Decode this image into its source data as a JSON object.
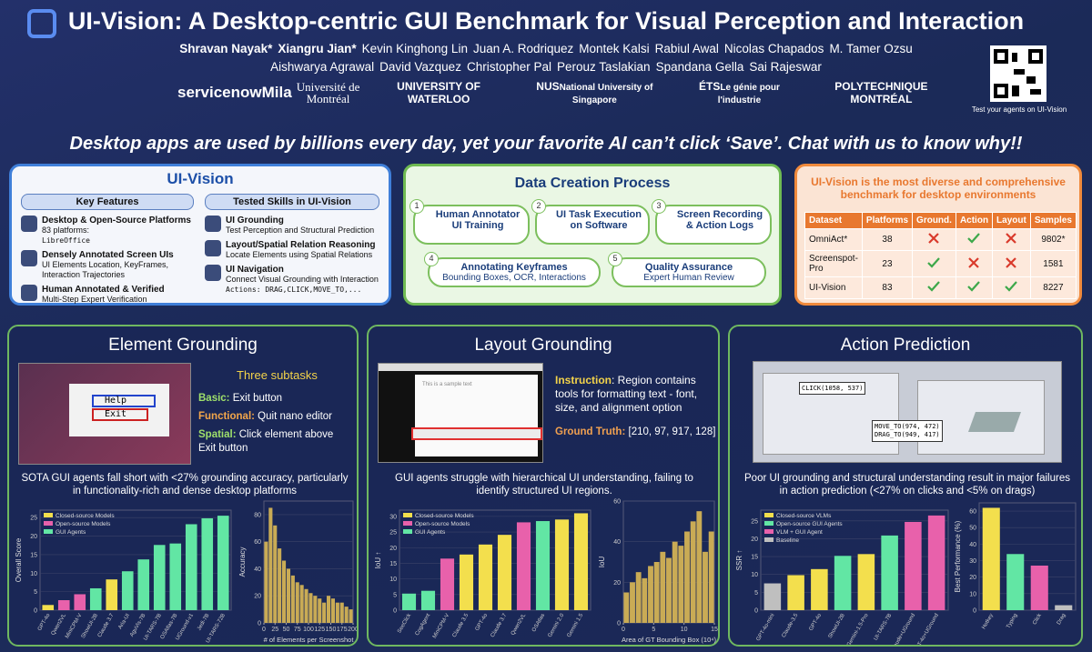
{
  "header": {
    "title": "UI-Vision: A Desktop-centric GUI Benchmark for Visual Perception and Interaction",
    "authors": [
      "Shravan Nayak*",
      "Xiangru Jian*",
      "Kevin Kinghong Lin",
      "Juan A. Rodriquez",
      "Montek Kalsi",
      "Rabiul Awal",
      "Nicolas Chapados",
      "M. Tamer Ozsu",
      "Aishwarya Agrawal",
      "David Vazquez",
      "Christopher Pal",
      "Perouz Taslakian",
      "Spandana Gella",
      "Sai Rajeswar"
    ],
    "logos": [
      "servicenow",
      "Mila",
      "Université de Montréal",
      "UNIVERSITY OF WATERLOO",
      "NUS",
      "ÉTS",
      "POLYTECHNIQUE MONTRÉAL"
    ],
    "logo_subtexts": [
      "National University of Singapore",
      "Le génie pour l'industrie"
    ],
    "qr_caption": "Test your agents on UI-Vision"
  },
  "tagline": "Desktop apps are used by billions every day, yet your favorite AI can’t click ‘Save’. Chat with us to know why!!",
  "ui_vision": {
    "title": "UI-Vision",
    "features_title": "Key Features",
    "features": [
      {
        "title": "Desktop & Open-Source Platforms",
        "desc": "83 platforms:",
        "extra": "LibreOffice"
      },
      {
        "title": "Densely Annotated Screen UIs",
        "desc": "UI Elements Location, KeyFrames, Interaction Trajectories"
      },
      {
        "title": "Human Annotated & Verified",
        "desc": "Multi-Step Expert Verification"
      }
    ],
    "skills_title": "Tested Skills in UI-Vision",
    "skills": [
      {
        "title": "UI Grounding",
        "desc": "Test Perception and Structural Prediction"
      },
      {
        "title": "Layout/Spatial Relation Reasoning",
        "desc": "Locate Elements using Spatial Relations"
      },
      {
        "title": "UI Navigation",
        "desc": "Connect Visual Grounding with Interaction",
        "extra": "Actions: DRAG,CLICK,MOVE_TO,..."
      }
    ]
  },
  "data_creation": {
    "title": "Data Creation Process",
    "steps": [
      {
        "num": "1",
        "title": "Human Annotator UI Training"
      },
      {
        "num": "2",
        "title": "UI Task Execution on Software"
      },
      {
        "num": "3",
        "title": "Screen Recording & Action Logs"
      },
      {
        "num": "4",
        "title": "Annotating Keyframes",
        "desc": "Bounding Boxes, OCR, Interactions"
      },
      {
        "num": "5",
        "title": "Quality Assurance",
        "desc": "Expert Human Review"
      }
    ]
  },
  "diversity": {
    "title": "UI-Vision is the most diverse and comprehensive benchmark for desktop environments",
    "table": {
      "headers": [
        "Dataset",
        "Platforms",
        "Ground.",
        "Action",
        "Layout",
        "Samples"
      ],
      "rows": [
        [
          "OmniAct*",
          "38",
          false,
          true,
          false,
          "9802*"
        ],
        [
          "Screenspot-Pro",
          "23",
          true,
          false,
          false,
          "1581"
        ],
        [
          "UI-Vision",
          "83",
          true,
          true,
          true,
          "8227"
        ]
      ]
    }
  },
  "element_grounding": {
    "title": "Element Grounding",
    "screenshot_texts": [
      "Help",
      "Exit"
    ],
    "subtasks_title": "Three subtasks",
    "subtasks": [
      {
        "label": "Basic:",
        "text": "Exit button"
      },
      {
        "label": "Functional:",
        "text": "Quit nano editor"
      },
      {
        "label": "Spatial:",
        "text": "Click element above Exit button"
      }
    ],
    "finding": "SOTA GUI agents fall short with <27% grounding accuracy, particularly in functionality-rich and dense desktop platforms",
    "charts": [
      {
        "type": "bar",
        "ylabel": "Overall Score",
        "categories": [
          "GPT-4o",
          "Qwen2VL",
          "MiniCPM-V",
          "ShowUI-2B",
          "Claude 3.7",
          "Aria-UI",
          "AguVis-7B",
          "UI-TARS-7B",
          "OSAtlas-7B",
          "UGround-v1",
          "Jedi-7B",
          "UI-TARS-72B"
        ],
        "values": [
          1.4,
          2.7,
          4.3,
          5.9,
          8.3,
          10.5,
          13.7,
          17.6,
          18.0,
          23.2,
          24.8,
          25.5
        ],
        "colors": [
          "#f3df4d",
          "#e861ab",
          "#e861ab",
          "#62e6a4",
          "#f3df4d",
          "#62e6a4",
          "#62e6a4",
          "#62e6a4",
          "#62e6a4",
          "#62e6a4",
          "#62e6a4",
          "#62e6a4"
        ],
        "legend": [
          {
            "name": "Closed-source Models",
            "color": "#f3df4d"
          },
          {
            "name": "Open-source Models",
            "color": "#e861ab"
          },
          {
            "name": "GUI Agents",
            "color": "#62e6a4"
          }
        ],
        "ylim": [
          0,
          27
        ],
        "yticks": [
          0,
          5,
          10,
          15,
          20,
          25
        ]
      },
      {
        "type": "histogram",
        "ylabel": "Accuracy",
        "xlabel": "# of Elements per Screenshot",
        "bins": [
          0,
          10,
          20,
          30,
          40,
          50,
          60,
          70,
          80,
          90,
          100,
          110,
          120,
          130,
          140,
          150,
          160,
          170,
          180,
          190,
          200
        ],
        "values": [
          60,
          85,
          72,
          55,
          46,
          40,
          35,
          30,
          28,
          25,
          22,
          20,
          18,
          15,
          20,
          18,
          15,
          15,
          12,
          10
        ],
        "color": "#c9ab55",
        "xlim": [
          0,
          200
        ],
        "xticks": [
          0,
          25,
          50,
          75,
          100,
          125,
          150,
          175,
          200
        ],
        "ylim": [
          0,
          90
        ],
        "yticks": [
          0,
          20,
          40,
          60,
          80
        ]
      }
    ]
  },
  "layout_grounding": {
    "title": "Layout Grounding",
    "screenshot_text": "This is a sample text",
    "instruction_label": "Instruction",
    "instruction": ": Region contains tools for formatting text - font, size, and alignment option",
    "gt_label": "Ground Truth:",
    "gt": "[210, 97, 917, 128]",
    "finding": "GUI agents struggle with hierarchical UI understanding, failing to identify structured UI regions.",
    "charts": [
      {
        "type": "bar",
        "ylabel": "IoU ↑",
        "categories": [
          "SeeClick",
          "CogAgent",
          "MiniCPM-V",
          "Claude 3.5",
          "GPT-4o",
          "Claude 3.7",
          "Qwen2VL",
          "OSAtlas",
          "Gemini 2.0",
          "Gemini 1.5"
        ],
        "values": [
          5.3,
          6.2,
          16.5,
          17.8,
          21.0,
          24.1,
          28.1,
          28.5,
          29.0,
          31.0
        ],
        "colors": [
          "#62e6a4",
          "#62e6a4",
          "#e861ab",
          "#f3df4d",
          "#f3df4d",
          "#f3df4d",
          "#e861ab",
          "#62e6a4",
          "#f3df4d",
          "#f3df4d"
        ],
        "legend": [
          {
            "name": "Closed-source Models",
            "color": "#f3df4d"
          },
          {
            "name": "Open-source Models",
            "color": "#e861ab"
          },
          {
            "name": "GUI Agents",
            "color": "#62e6a4"
          }
        ],
        "ylim": [
          0,
          32
        ],
        "yticks": [
          0,
          5,
          10,
          15,
          20,
          25,
          30
        ]
      },
      {
        "type": "histogram",
        "ylabel": "IoU",
        "xlabel": "Area of GT Bounding Box (10⁴)",
        "bins": [
          0,
          1,
          2,
          3,
          4,
          5,
          6,
          7,
          8,
          9,
          10,
          11,
          12,
          13,
          14,
          15
        ],
        "values": [
          15,
          20,
          25,
          22,
          28,
          30,
          35,
          32,
          40,
          38,
          45,
          50,
          55,
          35,
          45
        ],
        "color": "#c9ab55",
        "xlim": [
          0,
          15
        ],
        "xticks": [
          0,
          5,
          10,
          15
        ],
        "ylim": [
          0,
          60
        ],
        "yticks": [
          0,
          20,
          40,
          60
        ]
      }
    ]
  },
  "action_prediction": {
    "title": "Action Prediction",
    "screenshot_texts": [
      "CLICK(1058, 537)",
      "MOVE_TO(974, 472)",
      "DRAG_TO(949, 417)"
    ],
    "finding": "Poor UI grounding and structural understanding result in major failures in action prediction (<27% on clicks and <5% on drags)",
    "charts": [
      {
        "type": "bar",
        "ylabel": "SSR ↑",
        "categories": [
          "GPT-4o-mini",
          "Claude-3.5",
          "GPT-4o",
          "ShowUI-2B",
          "Gemini-1.5-Pro",
          "UI-TARS-7B",
          "Claude+UGround",
          "GPT-4o+UGround"
        ],
        "values": [
          7.5,
          9.8,
          11.5,
          15.2,
          15.7,
          20.9,
          24.7,
          26.5
        ],
        "colors": [
          "#bfbfbf",
          "#f3df4d",
          "#f3df4d",
          "#62e6a4",
          "#f3df4d",
          "#62e6a4",
          "#e861ab",
          "#e861ab"
        ],
        "legend": [
          {
            "name": "Closed-source VLMs",
            "color": "#f3df4d"
          },
          {
            "name": "Open-source GUI Agents",
            "color": "#62e6a4"
          },
          {
            "name": "VLM + GUI Agent",
            "color": "#e861ab"
          },
          {
            "name": "Baseline",
            "color": "#bfbfbf"
          }
        ],
        "ylim": [
          0,
          28
        ],
        "yticks": [
          0,
          5,
          10,
          15,
          20,
          25
        ]
      },
      {
        "type": "bar",
        "ylabel": "Best Performance (%)",
        "categories": [
          "Hotkey",
          "Typing",
          "Click",
          "Drag"
        ],
        "values": [
          62,
          34,
          27,
          3
        ],
        "colors": [
          "#f3df4d",
          "#62e6a4",
          "#e861ab",
          "#bfbfbf"
        ],
        "ylim": [
          0,
          65
        ],
        "yticks": [
          0,
          10,
          20,
          30,
          40,
          50,
          60
        ]
      }
    ]
  }
}
